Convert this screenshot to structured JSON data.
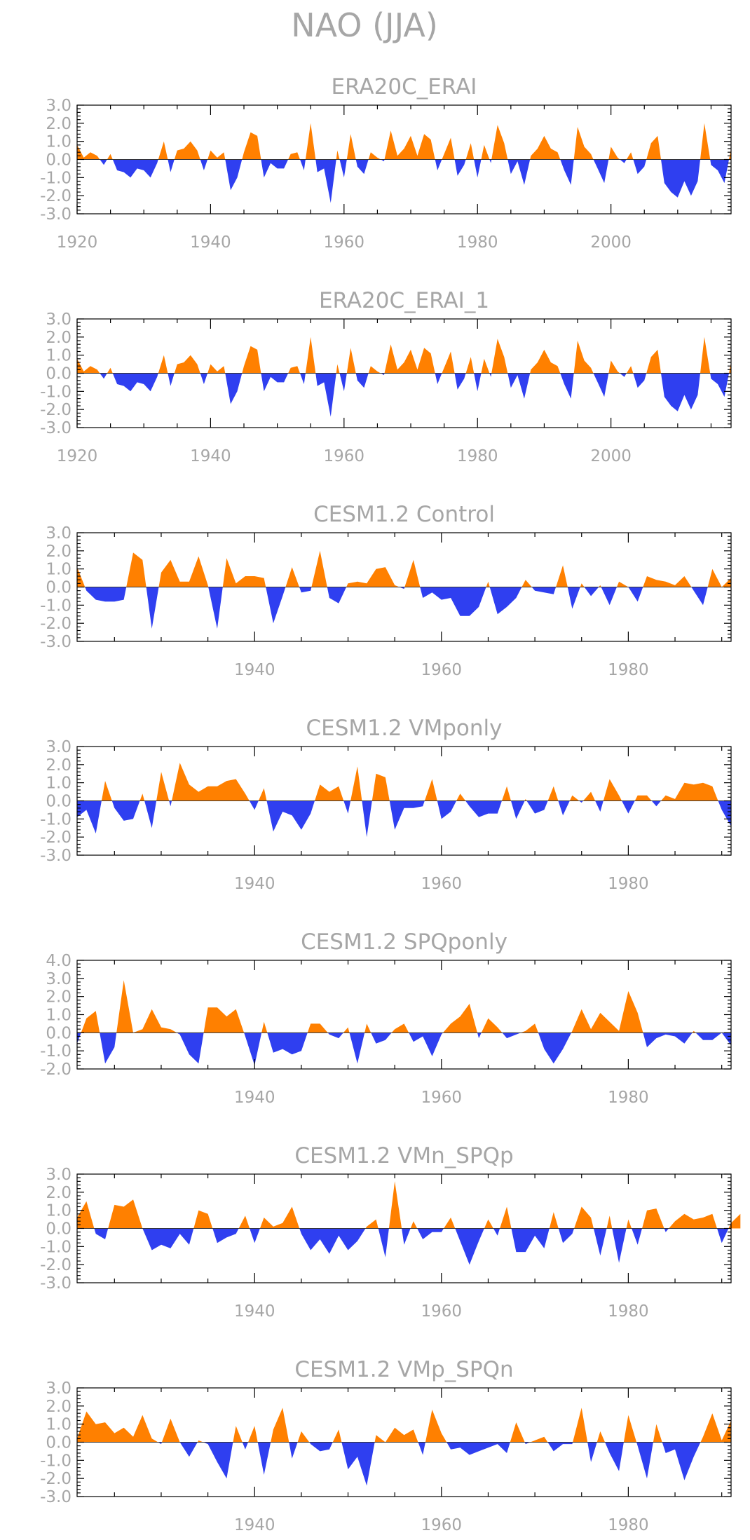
{
  "title": "NAO (JJA)",
  "colors": {
    "positive": "#ff8000",
    "negative": "#2f3ff0",
    "text": "#a6a6a6",
    "axes": "#000000"
  },
  "chart_data": [
    {
      "type": "area",
      "title": "ERA20C_ERAI",
      "x_start": 1920,
      "xlim": [
        1920,
        2018
      ],
      "ylim": [
        -3,
        3
      ],
      "y_ticks": [
        "3.0",
        "2.0",
        "1.0",
        "0.0",
        "-1.0",
        "-2.0",
        "-3.0"
      ],
      "x_ticks": [
        "1920",
        "1940",
        "1960",
        "1980",
        "2000"
      ],
      "values": [
        0.8,
        0.1,
        0.4,
        0.2,
        -0.3,
        0.3,
        -0.6,
        -0.7,
        -1.0,
        -0.5,
        -0.6,
        -1.0,
        -0.2,
        1.0,
        -0.7,
        0.5,
        0.6,
        1.0,
        0.5,
        -0.6,
        0.5,
        0.1,
        0.4,
        -1.7,
        -1.0,
        0.4,
        1.5,
        1.3,
        -1.0,
        -0.2,
        -0.5,
        -0.5,
        0.3,
        0.4,
        -0.6,
        2.0,
        -0.7,
        -0.5,
        -2.4,
        0.5,
        -1.0,
        1.4,
        -0.4,
        -0.8,
        0.4,
        0.1,
        -0.1,
        1.6,
        0.2,
        0.6,
        1.3,
        0.2,
        1.4,
        1.1,
        -0.6,
        0.3,
        1.2,
        -0.9,
        -0.3,
        0.9,
        -1.0,
        0.8,
        -0.2,
        1.9,
        0.9,
        -0.8,
        -0.1,
        -1.4,
        0.2,
        0.6,
        1.3,
        0.6,
        0.4,
        -0.6,
        -1.4,
        1.8,
        0.7,
        0.3,
        -0.5,
        -1.3,
        0.7,
        0.1,
        -0.2,
        0.4,
        -0.8,
        -0.4,
        0.9,
        1.3,
        -1.3,
        -1.8,
        -2.1,
        -1.2,
        -2.0,
        -1.2,
        2.0,
        -0.3,
        -0.6,
        -1.3,
        0.6
      ]
    },
    {
      "type": "area",
      "title": "ERA20C_ERAI_1",
      "x_start": 1920,
      "xlim": [
        1920,
        2018
      ],
      "ylim": [
        -3,
        3
      ],
      "y_ticks": [
        "3.0",
        "2.0",
        "1.0",
        "0.0",
        "-1.0",
        "-2.0",
        "-3.0"
      ],
      "x_ticks": [
        "1920",
        "1940",
        "1960",
        "1980",
        "2000"
      ],
      "values": [
        0.8,
        0.1,
        0.4,
        0.2,
        -0.3,
        0.3,
        -0.6,
        -0.7,
        -1.0,
        -0.5,
        -0.6,
        -1.0,
        -0.2,
        1.0,
        -0.7,
        0.5,
        0.6,
        1.0,
        0.5,
        -0.6,
        0.5,
        0.1,
        0.4,
        -1.7,
        -1.0,
        0.4,
        1.5,
        1.3,
        -1.0,
        -0.2,
        -0.5,
        -0.5,
        0.3,
        0.4,
        -0.6,
        2.0,
        -0.7,
        -0.5,
        -2.4,
        0.5,
        -1.0,
        1.4,
        -0.4,
        -0.8,
        0.4,
        0.1,
        -0.1,
        1.6,
        0.2,
        0.6,
        1.3,
        0.2,
        1.4,
        1.1,
        -0.6,
        0.3,
        1.2,
        -0.9,
        -0.3,
        0.9,
        -1.0,
        0.8,
        -0.2,
        1.9,
        0.9,
        -0.8,
        -0.1,
        -1.4,
        0.2,
        0.6,
        1.3,
        0.6,
        0.4,
        -0.6,
        -1.4,
        1.8,
        0.7,
        0.3,
        -0.5,
        -1.3,
        0.7,
        0.1,
        -0.2,
        0.4,
        -0.8,
        -0.4,
        0.9,
        1.3,
        -1.3,
        -1.8,
        -2.1,
        -1.2,
        -2.0,
        -1.2,
        2.0,
        -0.3,
        -0.6,
        -1.3,
        0.6
      ]
    },
    {
      "type": "area",
      "title": "CESM1.2 Control",
      "x_start": 1921,
      "xlim": [
        1921,
        1991
      ],
      "ylim": [
        -3,
        3
      ],
      "y_ticks": [
        "3.0",
        "2.0",
        "1.0",
        "0.0",
        "-1.0",
        "-2.0",
        "-3.0"
      ],
      "x_ticks": [
        "1940",
        "1960",
        "1980"
      ],
      "values": [
        1.1,
        -0.2,
        -0.7,
        -0.8,
        -0.8,
        -0.7,
        1.9,
        1.5,
        -2.3,
        0.8,
        1.5,
        0.3,
        0.3,
        1.7,
        0.1,
        -2.3,
        1.6,
        0.2,
        0.6,
        0.6,
        0.5,
        -2.0,
        -0.5,
        1.1,
        -0.3,
        -0.2,
        2.0,
        -0.6,
        -0.9,
        0.2,
        0.3,
        0.2,
        1.0,
        1.1,
        0.1,
        -0.1,
        1.5,
        -0.6,
        -0.3,
        -0.7,
        -0.6,
        -1.6,
        -1.6,
        -1.1,
        0.3,
        -1.5,
        -1.1,
        -0.6,
        0.4,
        -0.2,
        -0.3,
        -0.4,
        1.2,
        -1.2,
        0.2,
        -0.5,
        0.1,
        -1.0,
        0.3,
        0.0,
        -0.8,
        0.6,
        0.4,
        0.3,
        0.1,
        0.6,
        -0.2,
        -1.0,
        1.0,
        0.0,
        0.5
      ]
    },
    {
      "type": "area",
      "title": "CESM1.2 VMponly",
      "x_start": 1921,
      "xlim": [
        1921,
        1991
      ],
      "ylim": [
        -3,
        3
      ],
      "y_ticks": [
        "3.0",
        "2.0",
        "1.0",
        "0.0",
        "-1.0",
        "-2.0",
        "-3.0"
      ],
      "x_ticks": [
        "1940",
        "1960",
        "1980"
      ],
      "values": [
        -0.9,
        -0.5,
        -1.8,
        1.1,
        -0.4,
        -1.1,
        -1.0,
        0.4,
        -1.5,
        1.6,
        -0.3,
        2.1,
        0.9,
        0.5,
        0.8,
        0.8,
        1.1,
        1.2,
        0.4,
        -0.5,
        0.7,
        -1.7,
        -0.6,
        -0.8,
        -1.6,
        -0.7,
        0.9,
        0.5,
        0.8,
        -0.7,
        1.9,
        -2.0,
        1.5,
        1.3,
        -1.6,
        -0.4,
        -0.4,
        -0.3,
        1.2,
        -1.0,
        -0.6,
        0.4,
        -0.3,
        -0.9,
        -0.7,
        -0.7,
        0.8,
        -1.0,
        0.1,
        -0.7,
        -0.5,
        0.8,
        -0.8,
        0.3,
        -0.1,
        0.5,
        -0.6,
        1.2,
        0.3,
        -0.7,
        0.3,
        0.3,
        -0.3,
        0.3,
        0.1,
        1.0,
        0.9,
        1.0,
        0.8,
        -0.5,
        -1.4
      ]
    },
    {
      "type": "area",
      "title": "CESM1.2 SPQponly",
      "x_start": 1921,
      "xlim": [
        1921,
        1991
      ],
      "ylim": [
        -2,
        4
      ],
      "y_ticks": [
        "4.0",
        "3.0",
        "2.0",
        "1.0",
        "0.0",
        "-1.0",
        "-2.0"
      ],
      "x_ticks": [
        "1940",
        "1960",
        "1980"
      ],
      "values": [
        -0.6,
        0.8,
        1.2,
        -1.7,
        -0.8,
        2.9,
        0.0,
        0.2,
        1.3,
        0.3,
        0.2,
        -0.1,
        -1.2,
        -1.7,
        1.4,
        1.4,
        0.9,
        1.3,
        -0.2,
        -1.8,
        0.6,
        -1.1,
        -0.9,
        -1.2,
        -1.0,
        0.5,
        0.5,
        -0.1,
        -0.3,
        0.3,
        -1.7,
        0.5,
        -0.6,
        -0.4,
        0.2,
        0.5,
        -0.5,
        -0.2,
        -1.3,
        -0.1,
        0.5,
        0.9,
        1.6,
        -0.3,
        0.8,
        0.3,
        -0.3,
        -0.1,
        0.1,
        0.5,
        -0.9,
        -1.7,
        -0.9,
        0.1,
        1.3,
        0.2,
        1.1,
        0.6,
        0.1,
        2.3,
        1.1,
        -0.8,
        -0.3,
        -0.1,
        -0.2,
        -0.6,
        0.1,
        -0.4,
        -0.4,
        0.0,
        -0.7
      ]
    },
    {
      "type": "area",
      "title": "CESM1.2 VMn_SPQp",
      "x_start": 1921,
      "xlim": [
        1921,
        1991
      ],
      "ylim": [
        -3,
        3
      ],
      "y_ticks": [
        "3.0",
        "2.0",
        "1.0",
        "0.0",
        "-1.0",
        "-2.0",
        "-3.0"
      ],
      "x_ticks": [
        "1940",
        "1960",
        "1980"
      ],
      "values": [
        0.6,
        1.5,
        -0.3,
        -0.6,
        1.3,
        1.2,
        1.6,
        0.0,
        -1.2,
        -0.9,
        -1.1,
        -0.3,
        -0.9,
        1.0,
        0.8,
        -0.8,
        -0.5,
        -0.3,
        0.7,
        -0.8,
        0.6,
        0.1,
        0.3,
        1.2,
        -0.3,
        -1.2,
        -0.6,
        -1.4,
        -0.4,
        -1.2,
        -0.7,
        0.1,
        0.5,
        -1.6,
        2.6,
        -0.9,
        0.4,
        -0.6,
        -0.2,
        -0.2,
        0.6,
        -0.7,
        -2.0,
        -0.7,
        0.5,
        -0.4,
        1.2,
        -1.3,
        -1.3,
        -0.4,
        -1.1,
        0.9,
        -0.8,
        -0.3,
        1.2,
        0.6,
        -1.5,
        0.7,
        -1.9,
        0.5,
        -0.9,
        1.0,
        1.1,
        -0.2,
        0.4,
        0.8,
        0.5,
        0.6,
        0.8,
        -0.8,
        0.3,
        0.8
      ]
    },
    {
      "type": "area",
      "title": "CESM1.2 VMp_SPQn",
      "x_start": 1921,
      "xlim": [
        1921,
        1991
      ],
      "ylim": [
        -3,
        3
      ],
      "y_ticks": [
        "3.0",
        "2.0",
        "1.0",
        "0.0",
        "-1.0",
        "-2.0",
        "-3.0"
      ],
      "x_ticks": [
        "1940",
        "1960",
        "1980"
      ],
      "values": [
        0.2,
        1.7,
        1.0,
        1.1,
        0.5,
        0.8,
        0.3,
        1.5,
        0.2,
        -0.1,
        1.3,
        0.0,
        -0.8,
        0.1,
        -0.1,
        -1.1,
        -2.0,
        0.9,
        -0.4,
        0.9,
        -1.8,
        0.7,
        1.9,
        -0.9,
        0.6,
        -0.1,
        -0.5,
        -0.4,
        0.7,
        -1.5,
        -0.8,
        -2.4,
        0.4,
        0.0,
        0.8,
        0.4,
        0.7,
        -0.7,
        1.8,
        0.5,
        -0.4,
        -0.3,
        -0.7,
        -0.5,
        -0.3,
        -0.1,
        -0.6,
        1.1,
        -0.1,
        0.1,
        0.3,
        -0.5,
        -0.1,
        -0.1,
        1.9,
        -1.1,
        0.6,
        -0.6,
        -1.6,
        1.5,
        -0.2,
        -2.0,
        1.0,
        -0.6,
        -0.4,
        -2.1,
        -0.8,
        0.3,
        1.6,
        0.1,
        1.2
      ]
    }
  ]
}
